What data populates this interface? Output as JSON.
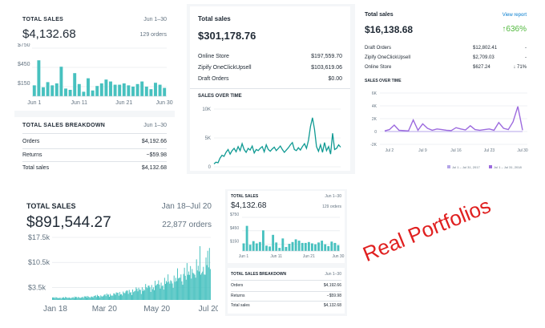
{
  "colors": {
    "teal": "#47c1bf",
    "teal_dark": "#0f9a93",
    "purple": "#9c6ade",
    "lavender": "#b4a5e8",
    "green": "#50b83c",
    "red": "#e02020",
    "blue": "#007ace"
  },
  "panel1": {
    "title": "TOTAL SALES",
    "date_range": "Jun 1–30",
    "total": "$4,132.68",
    "orders": "129 orders",
    "breakdown_title": "TOTAL SALES BREAKDOWN",
    "breakdown_range": "Jun 1–30",
    "rows": [
      {
        "label": "Orders",
        "value": "$4,192.66"
      },
      {
        "label": "Returns",
        "value": "−$59.98"
      },
      {
        "label": "Total sales",
        "value": "$4,132.68"
      }
    ]
  },
  "panel2": {
    "title": "Total sales",
    "total": "$301,178.76",
    "rows": [
      {
        "label": "Online Store",
        "value": "$197,559.70"
      },
      {
        "label": "Zipify OneClickUpsell",
        "value": "$103,619.06"
      },
      {
        "label": "Draft Orders",
        "value": "$0.00"
      }
    ],
    "chart_title": "SALES OVER TIME"
  },
  "panel3": {
    "title": "Total sales",
    "link": "View report",
    "total": "$16,138.68",
    "change": "↑636%",
    "rows": [
      {
        "label": "Draft Orders",
        "value": "$12,802.41",
        "change": "-"
      },
      {
        "label": "Zipify OneClickUpsell",
        "value": "$2,709.03",
        "change": "-"
      },
      {
        "label": "Online Store",
        "value": "$627.24",
        "change": "↓ 71%"
      }
    ],
    "chart_title": "SALES OVER TIME"
  },
  "panel4": {
    "title": "TOTAL SALES",
    "date_range": "Jan 18–Jul 20",
    "total": "$891,544.27",
    "orders": "22,877 orders"
  },
  "panel5": {
    "title": "TOTAL SALES",
    "date_range": "Jun 1–30",
    "total": "$4,132.68",
    "orders": "129 orders",
    "breakdown_title": "TOTAL SALES BREAKDOWN",
    "breakdown_range": "Jun 1–30",
    "rows": [
      {
        "label": "Orders",
        "value": "$4,192.66"
      },
      {
        "label": "Returns",
        "value": "−$59.98"
      },
      {
        "label": "Total sales",
        "value": "$4,132.68"
      }
    ]
  },
  "overlay_text": "Real Portfolios",
  "chart_data": [
    {
      "type": "bar",
      "yticks": [
        "$750",
        "$450",
        "$150"
      ],
      "ylim": [
        0,
        750
      ],
      "xticks": [
        "Jun 1",
        "Jun 11",
        "Jun 21",
        "Jun 30"
      ],
      "x": [
        1,
        2,
        3,
        4,
        5,
        6,
        7,
        8,
        9,
        10,
        11,
        12,
        13,
        14,
        15,
        16,
        17,
        18,
        19,
        20,
        21,
        22,
        23,
        24,
        25,
        26,
        27,
        28,
        29,
        30
      ],
      "values": [
        170,
        560,
        140,
        220,
        170,
        200,
        460,
        120,
        100,
        360,
        190,
        70,
        280,
        90,
        160,
        200,
        260,
        230,
        180,
        180,
        200,
        170,
        150,
        190,
        230,
        150,
        110,
        210,
        180,
        130
      ]
    },
    {
      "type": "line",
      "yticks": [
        "10K",
        "5K",
        "0"
      ],
      "ylim": [
        0,
        10000
      ],
      "values": [
        500,
        800,
        700,
        1500,
        2000,
        1800,
        2500,
        3000,
        2200,
        2800,
        3200,
        2600,
        3500,
        2800,
        4000,
        3000,
        2500,
        3200,
        2900,
        3600,
        2400,
        3000,
        2800,
        3200,
        3500,
        2600,
        3800,
        3000,
        2700,
        3100,
        3400,
        2800,
        3200,
        3600,
        3000,
        2500,
        2900,
        3300,
        3800,
        4200,
        3000,
        2800,
        3300,
        2900,
        3500,
        4000,
        3200,
        4600,
        7000,
        8500,
        6500,
        3500,
        2700,
        3800,
        2500,
        4200,
        2800,
        3500,
        2200,
        5800,
        3000,
        3200,
        3800,
        3400
      ]
    },
    {
      "type": "line",
      "yticks": [
        "6K",
        "4K",
        "2K",
        "0",
        "-2K"
      ],
      "ylim": [
        -2000,
        6000
      ],
      "xticks": [
        "Jul 2",
        "Jul 9",
        "Jul 16",
        "Jul 23",
        "Jul 30"
      ],
      "series": [
        {
          "name": "Jul 1 – Jul 31, 2017",
          "values": [
            0,
            0,
            0,
            0,
            0,
            0,
            0,
            0,
            0,
            0,
            0,
            0,
            0,
            0,
            0,
            0,
            0,
            0,
            0,
            0,
            0,
            0,
            0,
            0,
            0,
            0,
            0,
            0,
            0,
            0
          ]
        },
        {
          "name": "Jul 1 – Jul 31, 2018",
          "values": [
            100,
            300,
            1000,
            200,
            150,
            100,
            1800,
            200,
            1200,
            500,
            200,
            400,
            300,
            200,
            150,
            600,
            400,
            250,
            900,
            300,
            200,
            300,
            400,
            200,
            1400,
            500,
            300,
            1500,
            3900,
            200
          ]
        }
      ]
    },
    {
      "type": "bar",
      "yticks": [
        "$17.5k",
        "$10.5k",
        "$3.5k"
      ],
      "ylim": [
        0,
        17500
      ],
      "xticks": [
        "Jan 18",
        "Mar 20",
        "May 20",
        "Jul 20"
      ],
      "series_note": "daily sales, approx. growth trend"
    },
    {
      "type": "bar",
      "yticks": [
        "$750",
        "$450",
        "$150"
      ],
      "ylim": [
        0,
        750
      ],
      "xticks": [
        "Jun 1",
        "Jun 11",
        "Jun 21",
        "Jun 30"
      ],
      "values": [
        170,
        560,
        140,
        220,
        170,
        200,
        460,
        120,
        100,
        360,
        190,
        70,
        280,
        90,
        160,
        200,
        260,
        230,
        180,
        180,
        200,
        170,
        150,
        190,
        230,
        150,
        110,
        210,
        180,
        130
      ]
    }
  ]
}
